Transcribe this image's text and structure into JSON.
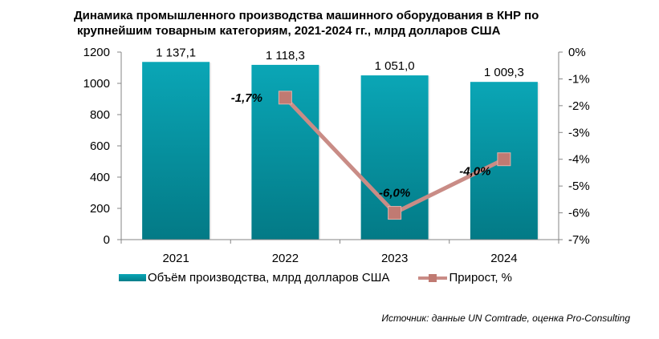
{
  "chart_data": {
    "type": "bar+line",
    "title_line1": "Динамика промышленного производства машинного оборудования в КНР по",
    "title_line2": "крупнейшим товарным категориям, 2021-2024 гг., млрд долларов США",
    "categories": [
      "2021",
      "2022",
      "2023",
      "2024"
    ],
    "series": [
      {
        "name": "Объём производства, млрд долларов США",
        "type": "bar",
        "axis": "left",
        "values": [
          1137.1,
          1118.3,
          1051.0,
          1009.3
        ],
        "labels": [
          "1 137,1",
          "1 118,3",
          "1 051,0",
          "1 009,3"
        ],
        "color": "#0aa6b6"
      },
      {
        "name": "Прирост, %",
        "type": "line",
        "axis": "right",
        "values": [
          null,
          -1.7,
          -6.0,
          -4.0
        ],
        "labels": [
          "",
          "-1,7%",
          "-6,0%",
          "-4,0%"
        ],
        "color": "#c98c86"
      }
    ],
    "left_axis": {
      "min": 0,
      "max": 1200,
      "ticks": [
        "0",
        "200",
        "400",
        "600",
        "800",
        "1000",
        "1200"
      ]
    },
    "right_axis": {
      "min": -7,
      "max": 0,
      "ticks": [
        "-7%",
        "-6%",
        "-5%",
        "-4%",
        "-3%",
        "-2%",
        "-1%",
        "0%"
      ]
    },
    "legend_position": "bottom",
    "grid": false
  },
  "source": "Источник: данные UN Comtrade, оценка Pro-Consulting"
}
